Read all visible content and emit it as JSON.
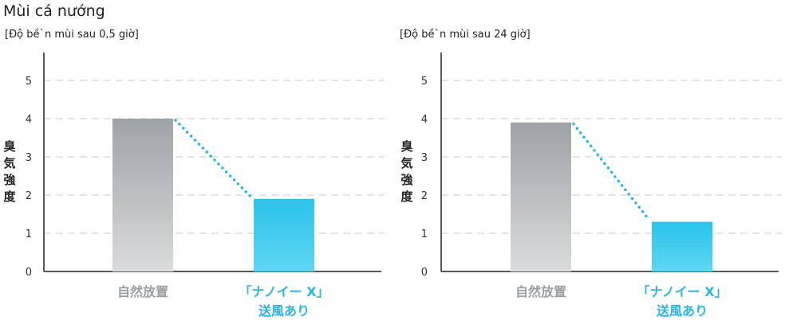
{
  "title": "Mùi cá nướng",
  "colors": {
    "neutral_bar": "#a7abae",
    "treated_bar": "#33c7ec",
    "connector": "#1fb6ea",
    "grid": "#c8c8c8"
  },
  "chart_data": [
    {
      "type": "bar",
      "subtitle": "[Độ bề`n mùi sau 0,5 giờ]",
      "ylabel": "臭気強度",
      "ylim": [
        0,
        5
      ],
      "yticks": [
        "0",
        "1",
        "2",
        "3",
        "4",
        "5"
      ],
      "categories": [
        {
          "lines": [
            "自然放置"
          ],
          "style": "gray"
        },
        {
          "lines": [
            "「ナノイー X」",
            "送風あり"
          ],
          "style": "blue"
        }
      ],
      "values": [
        4.0,
        1.9
      ],
      "grid": true
    },
    {
      "type": "bar",
      "subtitle": "[Độ bề`n mùi sau 24 giờ]",
      "ylabel": "臭気強度",
      "ylim": [
        0,
        5
      ],
      "yticks": [
        "0",
        "1",
        "2",
        "3",
        "4",
        "5"
      ],
      "categories": [
        {
          "lines": [
            "自然放置"
          ],
          "style": "gray"
        },
        {
          "lines": [
            "「ナノイー X」",
            "送風あり"
          ],
          "style": "blue"
        }
      ],
      "values": [
        3.9,
        1.3
      ],
      "grid": true
    }
  ]
}
